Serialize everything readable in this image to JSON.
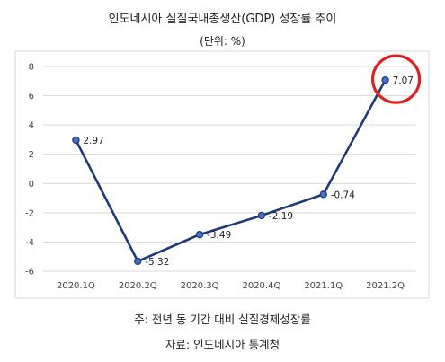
{
  "header": {
    "title": "인도네시아 실질국내총생산(GDP) 성장률 추이",
    "unit": "(단위: %)"
  },
  "footer": {
    "note": "주: 전년 동 기간 대비 실질경제성장률",
    "source": "자료: 인도네시아 통계청"
  },
  "chart_data": {
    "type": "line",
    "title": "인도네시아 실질국내총생산(GDP) 성장률 추이",
    "unit": "(단위: %)",
    "categories": [
      "2020.1Q",
      "2020.2Q",
      "2020.3Q",
      "2020.4Q",
      "2021.1Q",
      "2021.2Q"
    ],
    "series": [
      {
        "values": [
          2.97,
          -5.32,
          -3.49,
          -2.19,
          -0.74,
          7.07
        ],
        "color": "#1f3a7a"
      }
    ],
    "data_labels": [
      "2.97",
      "-5.32",
      "-3.49",
      "-2.19",
      "-0.74",
      "7.07"
    ],
    "ylim": [
      -6,
      8
    ],
    "yticks": [
      -6,
      -4,
      -2,
      0,
      2,
      4,
      6,
      8
    ],
    "grid": true,
    "highlight": {
      "category": "2021.2Q",
      "shape": "circle",
      "color": "#e02020"
    }
  }
}
